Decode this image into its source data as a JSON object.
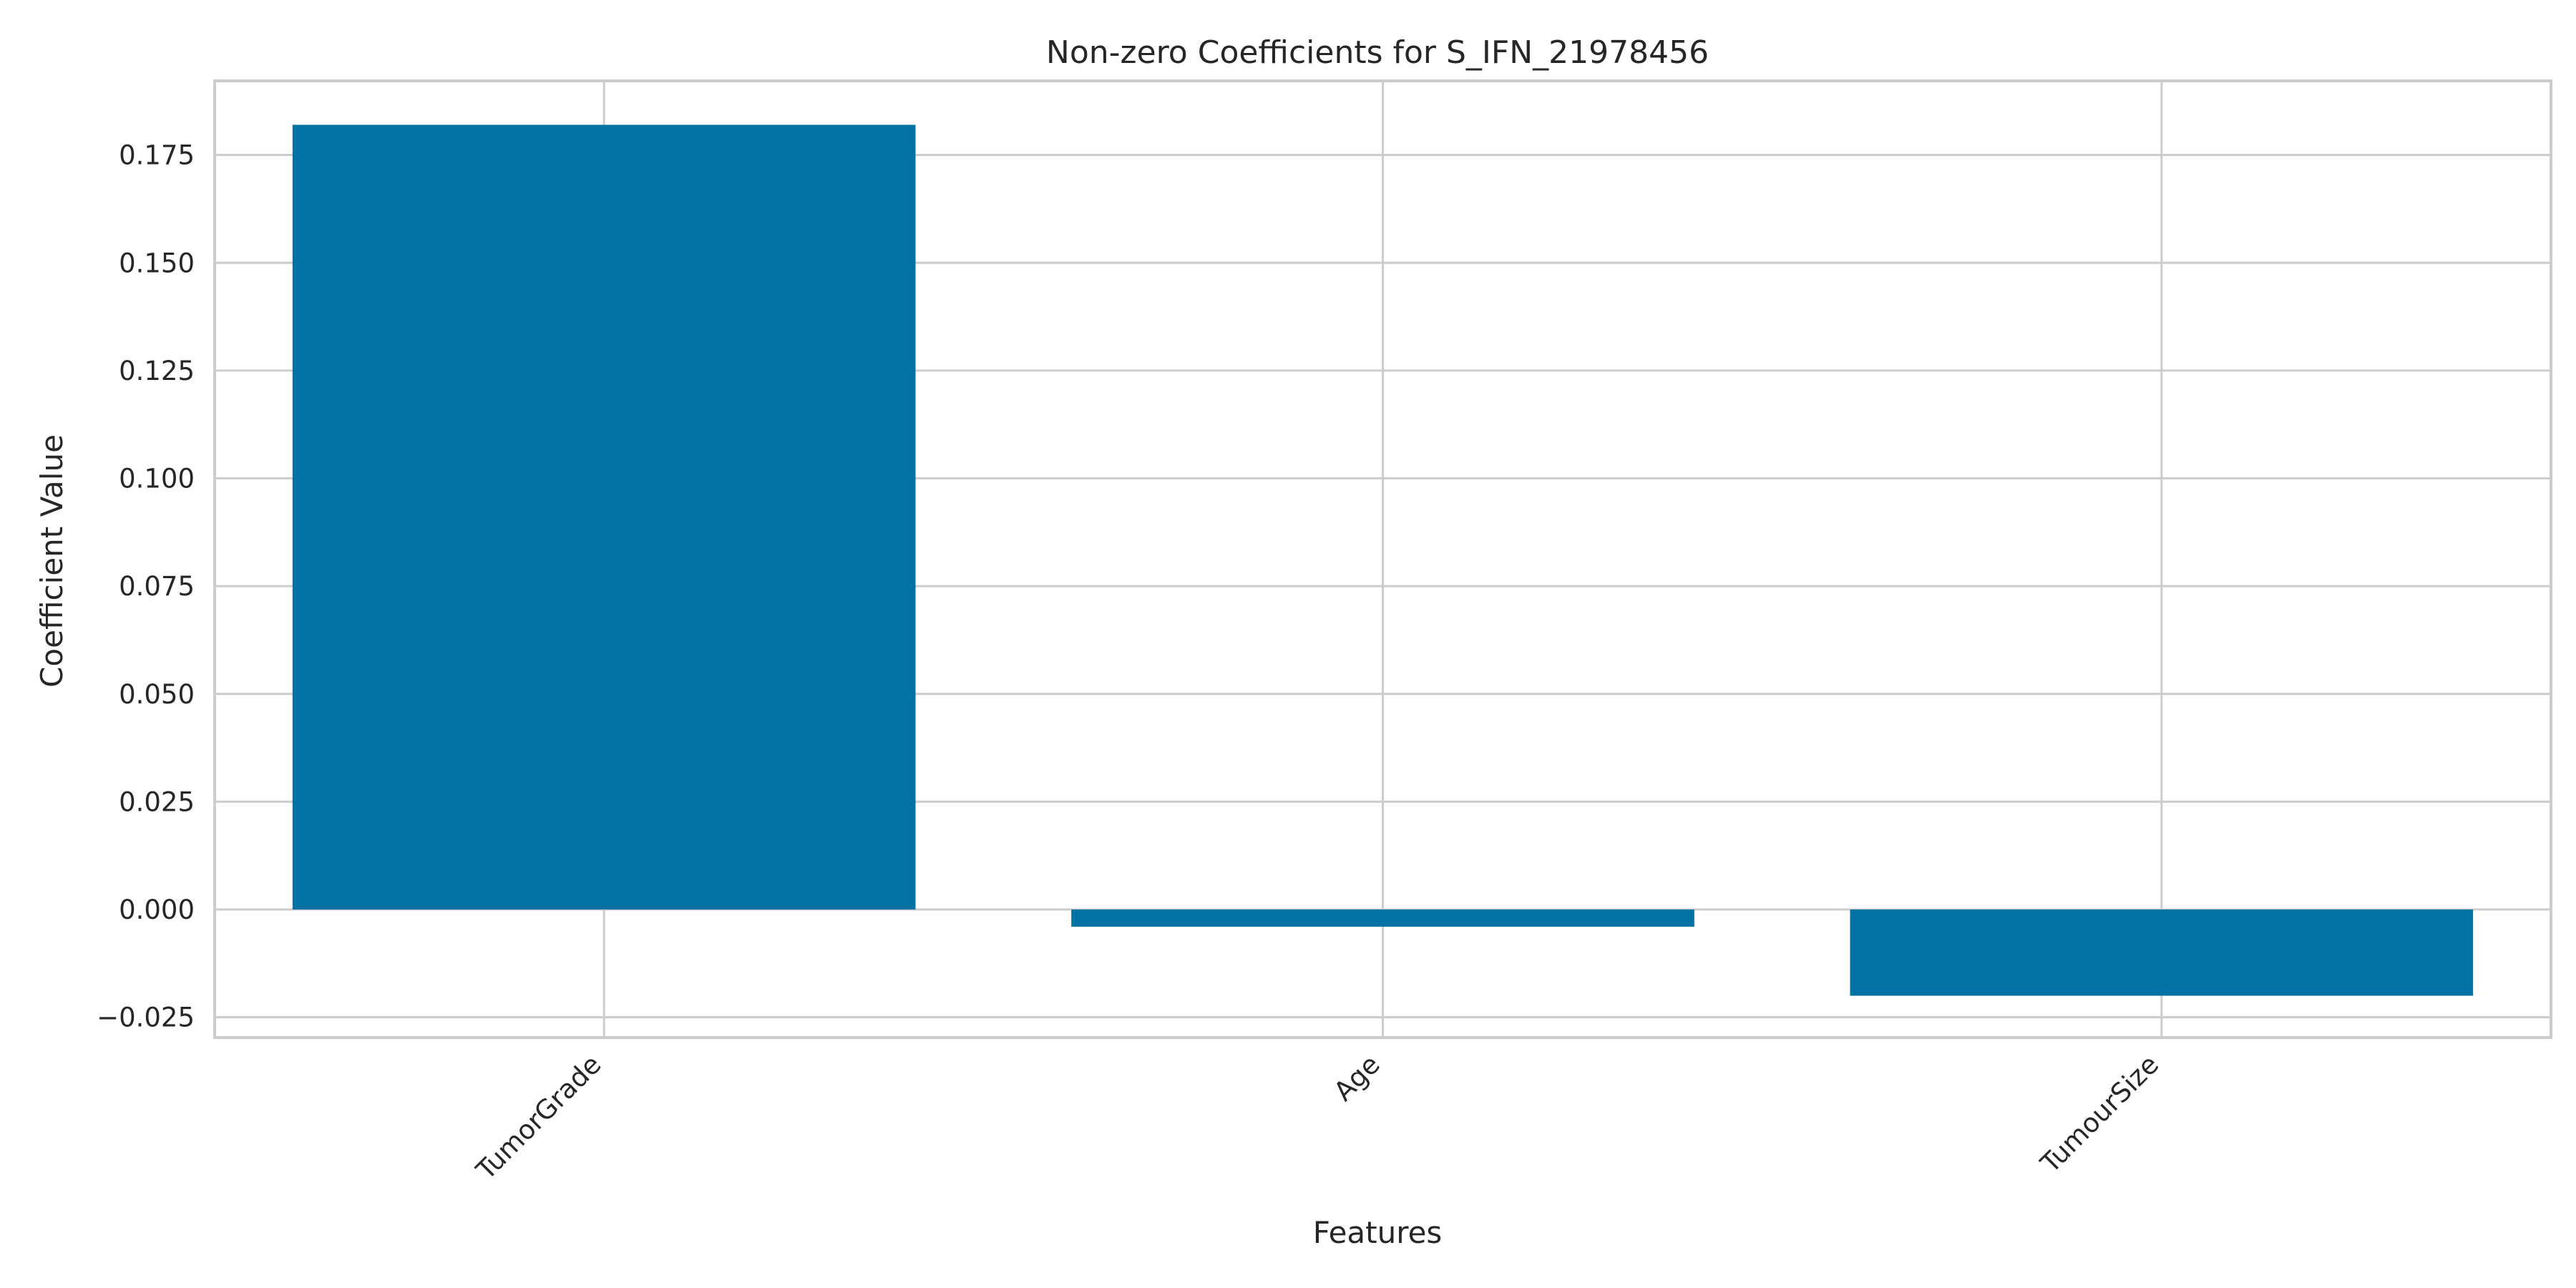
{
  "chart_data": {
    "type": "bar",
    "title": "Non-zero Coefficients for S_IFN_21978456",
    "xlabel": "Features",
    "ylabel": "Coefficient Value",
    "categories": [
      "TumorGrade",
      "Age",
      "TumourSize"
    ],
    "values": [
      0.182,
      -0.004,
      -0.02
    ],
    "ylim": [
      -0.0297,
      0.1922
    ],
    "yticks": [
      -0.025,
      0.0,
      0.025,
      0.05,
      0.075,
      0.1,
      0.125,
      0.15,
      0.175
    ],
    "ytick_labels": [
      "−0.025",
      "0.000",
      "0.025",
      "0.050",
      "0.075",
      "0.100",
      "0.125",
      "0.150",
      "0.175"
    ],
    "grid": true,
    "bar_color": "#0271a3",
    "legend": "none"
  }
}
